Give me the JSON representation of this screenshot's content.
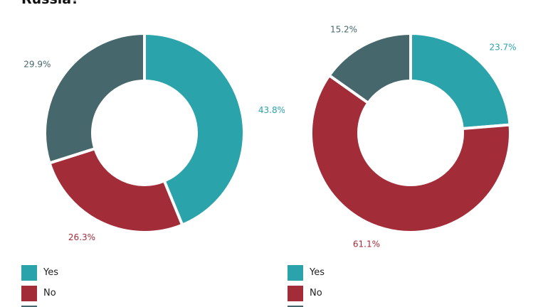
{
  "title": "Russia?",
  "colors": {
    "yes": "#2ba3ab",
    "no": "#a32c39",
    "other": "#46686c"
  },
  "chart_data": [
    {
      "type": "pie",
      "variant": "donut",
      "slices": [
        {
          "label": "Yes",
          "value": 43.8,
          "display": "43.8%",
          "color": "#2ba3ab"
        },
        {
          "label": "No",
          "value": 26.3,
          "display": "26.3%",
          "color": "#a32c39"
        },
        {
          "label": "",
          "value": 29.9,
          "display": "29.9%",
          "color": "#46686c"
        }
      ],
      "legend": [
        "Yes",
        "No"
      ],
      "legend_position": "bottom-left"
    },
    {
      "type": "pie",
      "variant": "donut",
      "slices": [
        {
          "label": "Yes",
          "value": 23.7,
          "display": "23.7%",
          "color": "#2ba3ab"
        },
        {
          "label": "No",
          "value": 61.1,
          "display": "61.1%",
          "color": "#a32c39"
        },
        {
          "label": "",
          "value": 15.2,
          "display": "15.2%",
          "color": "#46686c"
        }
      ],
      "legend": [
        "Yes",
        "No"
      ],
      "legend_position": "bottom-left"
    }
  ]
}
